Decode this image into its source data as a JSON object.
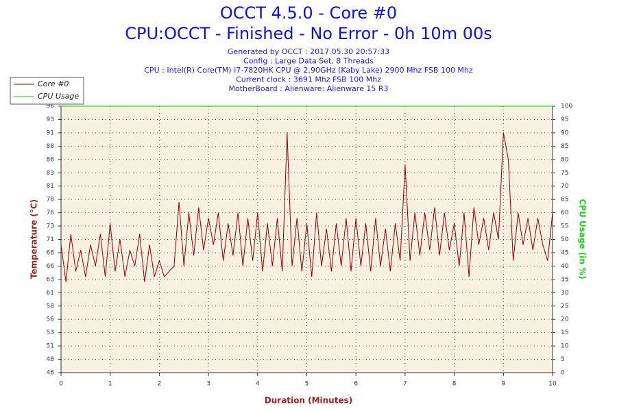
{
  "chart_data": {
    "type": "line",
    "title": "OCCT 4.5.0 - Core #0",
    "subtitle": "CPU:OCCT - Finished - No Error - 0h 10m 00s",
    "info": [
      "Generated by OCCT : 2017.05.30 20:57:33",
      "Config : Large Data Set, 8 Threads",
      "CPU : Intel(R) Core(TM) i7-7820HK CPU @ 2.90GHz (Kaby Lake) 2900 Mhz FSB 100 Mhz",
      "Current clock : 3691 Mhz FSB 100 Mhz",
      "MotherBoard : Alienware: Alienware 15 R3"
    ],
    "xlabel": "Duration (Minutes)",
    "ylabel": "Temperature (°C)",
    "y2label": "CPU Usage (in %)",
    "xlim": [
      0,
      10
    ],
    "xticks": [
      0,
      1,
      2,
      3,
      4,
      5,
      6,
      7,
      8,
      9,
      10
    ],
    "ylim": [
      46,
      96
    ],
    "yticks": [
      46,
      {
        "value": 48.5,
        "label": "48"
      },
      51,
      {
        "value": 53.5,
        "label": "53"
      },
      56,
      {
        "value": 58.5,
        "label": "58"
      },
      61,
      {
        "value": 63.5,
        "label": "63"
      },
      66,
      {
        "value": 68.5,
        "label": "68"
      },
      71,
      {
        "value": 73.5,
        "label": "73"
      },
      76,
      {
        "value": 78.5,
        "label": "78"
      },
      81,
      {
        "value": 83.5,
        "label": "83"
      },
      86,
      {
        "value": 88.5,
        "label": "88"
      },
      91,
      {
        "value": 93.5,
        "label": "93"
      },
      96
    ],
    "y2lim": [
      0,
      100
    ],
    "y2ticks": [
      0,
      5,
      10,
      15,
      20,
      25,
      30,
      35,
      40,
      45,
      50,
      55,
      60,
      65,
      70,
      75,
      80,
      85,
      90,
      95,
      100
    ],
    "grid": true,
    "legend": "top-left",
    "series": [
      {
        "name": "Core #0",
        "color": "#8b0000",
        "x": [
          0,
          0.1,
          0.2,
          0.3,
          0.4,
          0.5,
          0.6,
          0.7,
          0.8,
          0.9,
          1,
          1.1,
          1.2,
          1.3,
          1.4,
          1.5,
          1.6,
          1.7,
          1.8,
          1.9,
          2,
          2.1,
          2.2,
          2.3,
          2.4,
          2.5,
          2.6,
          2.7,
          2.8,
          2.9,
          3,
          3.1,
          3.2,
          3.3,
          3.4,
          3.5,
          3.6,
          3.7,
          3.8,
          3.9,
          4,
          4.1,
          4.2,
          4.3,
          4.4,
          4.5,
          4.6,
          4.7,
          4.8,
          4.9,
          5,
          5.1,
          5.2,
          5.3,
          5.4,
          5.5,
          5.6,
          5.7,
          5.8,
          5.9,
          6,
          6.1,
          6.2,
          6.3,
          6.4,
          6.5,
          6.6,
          6.7,
          6.8,
          6.9,
          7,
          7.1,
          7.2,
          7.3,
          7.4,
          7.5,
          7.6,
          7.7,
          7.8,
          7.9,
          8,
          8.1,
          8.2,
          8.3,
          8.4,
          8.5,
          8.6,
          8.7,
          8.8,
          8.9,
          9,
          9.1,
          9.2,
          9.3,
          9.4,
          9.5,
          9.6,
          9.7,
          9.8,
          9.9,
          10
        ],
        "values": [
          70,
          63,
          72,
          65,
          69,
          64,
          70,
          66,
          72,
          64,
          74,
          65,
          71,
          64,
          69,
          66,
          72,
          63,
          70,
          64,
          67,
          64,
          65,
          66,
          78,
          66,
          76,
          68,
          77,
          69,
          75,
          70,
          76,
          67,
          74,
          68,
          76,
          66,
          75,
          67,
          76,
          65,
          74,
          66,
          75,
          65,
          91,
          66,
          75,
          65,
          74,
          64,
          76,
          66,
          73,
          65,
          74,
          66,
          75,
          65,
          75,
          66,
          74,
          65,
          75,
          66,
          73,
          65,
          74,
          67,
          85,
          67,
          76,
          68,
          76,
          69,
          77,
          68,
          76,
          69,
          74,
          66,
          76,
          64,
          77,
          70,
          75,
          69,
          76,
          71,
          91,
          86,
          67,
          76,
          70,
          75,
          69,
          75,
          70,
          67,
          76
        ]
      },
      {
        "name": "CPU Usage",
        "color": "#00cc00",
        "axis": "y2",
        "x": [
          0,
          10
        ],
        "values": [
          100,
          100
        ]
      }
    ]
  }
}
